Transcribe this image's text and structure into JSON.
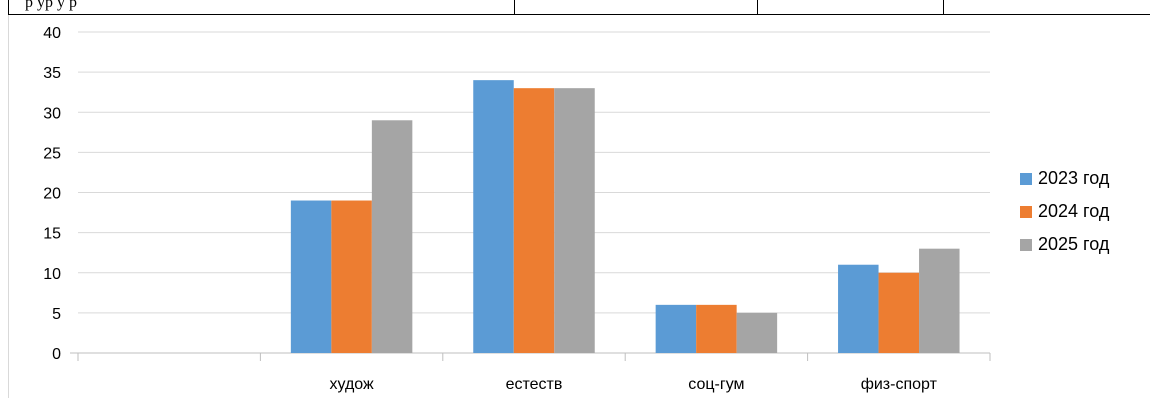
{
  "header_row": {
    "text": "р ур у р"
  },
  "chart_data": {
    "type": "bar",
    "categories": [
      "",
      "худож",
      "естеств",
      "соц-гум",
      "физ-спорт"
    ],
    "series": [
      {
        "name": "2023 год",
        "color": "#5b9bd5",
        "values": [
          0,
          19,
          34,
          6,
          11
        ]
      },
      {
        "name": "2024 год",
        "color": "#ed7d31",
        "values": [
          0,
          19,
          33,
          6,
          10
        ]
      },
      {
        "name": "2025 год",
        "color": "#a5a5a5",
        "values": [
          0,
          29,
          33,
          5,
          13
        ]
      }
    ],
    "ylim": [
      0,
      40
    ],
    "yticks": [
      "0",
      "5",
      "10",
      "15",
      "20",
      "25",
      "30",
      "35",
      "40"
    ],
    "grid": true,
    "legend_position": "right"
  }
}
